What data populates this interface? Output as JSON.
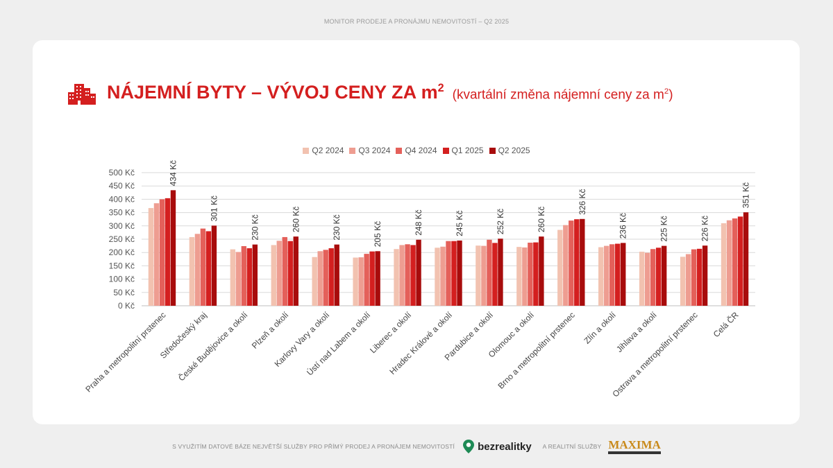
{
  "header": {
    "caption": "MONITOR PRODEJE A PRONÁJMU NEMOVITOSTÍ – Q2 2025"
  },
  "title": {
    "main": "NÁJEMNÍ BYTY – VÝVOJ CENY ZA m",
    "main_sup": "2",
    "sub": "(kvartální změna nájemní ceny za m",
    "sub_sup": "2",
    "sub_end": ")"
  },
  "colors": {
    "accent": "#d41f1f"
  },
  "icons": {
    "title_icon": "buildings-icon",
    "footer_brand_icon": "location-pin-icon"
  },
  "chart_data": {
    "type": "bar",
    "categories": [
      "Praha a metropolitní prstenec",
      "Středočeský kraj",
      "České Budějovice a okolí",
      "Plzeň a okolí",
      "Karlovy Vary a okolí",
      "Ústí nad Labem a okolí",
      "Liberec a okolí",
      "Hradec Králové a okolí",
      "Pardubice a okolí",
      "Olomouc a okolí",
      "Brno a metropolitní prstenec",
      "Zlín a okolí",
      "Jihlava a okolí",
      "Ostrava a metropolitní prstenec",
      "Celá ČR"
    ],
    "series": [
      {
        "name": "Q2 2024",
        "color": "#f2c2b0",
        "values": [
          367,
          258,
          212,
          228,
          183,
          181,
          213,
          218,
          226,
          221,
          285,
          220,
          203,
          184,
          310
        ]
      },
      {
        "name": "Q3 2024",
        "color": "#ee9d91",
        "values": [
          385,
          270,
          202,
          244,
          205,
          182,
          228,
          222,
          225,
          219,
          303,
          225,
          199,
          194,
          321
        ]
      },
      {
        "name": "Q4 2024",
        "color": "#e4605a",
        "values": [
          400,
          290,
          224,
          258,
          210,
          195,
          231,
          243,
          248,
          237,
          320,
          231,
          213,
          212,
          328
        ]
      },
      {
        "name": "Q1 2025",
        "color": "#d41f1f",
        "values": [
          404,
          280,
          216,
          243,
          216,
          204,
          228,
          243,
          236,
          238,
          325,
          233,
          218,
          214,
          335
        ]
      },
      {
        "name": "Q2 2025",
        "color": "#a80c0c",
        "values": [
          434,
          301,
          230,
          260,
          230,
          205,
          248,
          245,
          252,
          260,
          326,
          236,
          225,
          226,
          351
        ]
      }
    ],
    "data_labels": [
      "434 Kč",
      "301 Kč",
      "230 Kč",
      "260 Kč",
      "230 Kč",
      "205 Kč",
      "248 Kč",
      "245 Kč",
      "252 Kč",
      "260 Kč",
      "326 Kč",
      "236 Kč",
      "225 Kč",
      "226 Kč",
      "351 Kč"
    ],
    "y_ticks": [
      "0 Kč",
      "50 Kč",
      "100 Kč",
      "150 Kč",
      "200 Kč",
      "250 Kč",
      "300 Kč",
      "350 Kč",
      "400 Kč",
      "450 Kč",
      "500 Kč"
    ],
    "ylim": [
      0,
      500
    ],
    "grid": true,
    "legend_position": "top"
  },
  "footer": {
    "text": "S VYUŽITÍM DATOVÉ BÁZE NEJVĚTŠÍ SLUŽBY PRO PŘÍMÝ PRODEJ A PRONÁJEM NEMOVITOSTÍ",
    "brand1": "bezrealitky",
    "mid": "A REALITNÍ SLUŽBY",
    "brand2": "MAXIMA"
  }
}
